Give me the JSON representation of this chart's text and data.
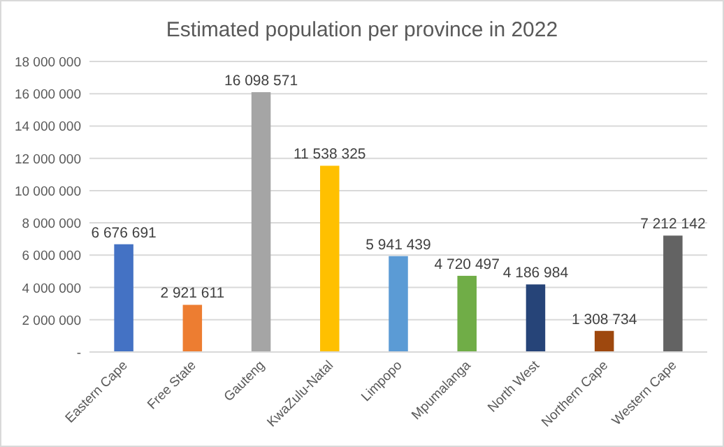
{
  "chart_data": {
    "type": "bar",
    "title": "Estimated population per province in 2022",
    "categories": [
      "Eastern Cape",
      "Free State",
      "Gauteng",
      "KwaZulu-Natal",
      "Limpopo",
      "Mpumalanga",
      "North West",
      "Northern Cape",
      "Western Cape"
    ],
    "values": [
      6676691,
      2921611,
      16098571,
      11538325,
      5941439,
      4720497,
      4186984,
      1308734,
      7212142
    ],
    "colors": [
      "#4472c4",
      "#ed7d31",
      "#a5a5a5",
      "#ffc000",
      "#5b9bd5",
      "#70ad47",
      "#264478",
      "#9e480e",
      "#636363"
    ],
    "value_labels": [
      "6 676 691",
      "2 921 611",
      "16 098 571",
      "11 538 325",
      "5 941 439",
      "4 720 497",
      "4 186 984",
      "1 308 734",
      "7 212 142"
    ],
    "ylim": [
      0,
      18000000
    ],
    "yticks": [
      {
        "value": 0,
        "label": "-"
      },
      {
        "value": 2000000,
        "label": "2 000 000"
      },
      {
        "value": 4000000,
        "label": "4 000 000"
      },
      {
        "value": 6000000,
        "label": "6 000 000"
      },
      {
        "value": 8000000,
        "label": "8 000 000"
      },
      {
        "value": 10000000,
        "label": "10 000 000"
      },
      {
        "value": 12000000,
        "label": "12 000 000"
      },
      {
        "value": 14000000,
        "label": "14 000 000"
      },
      {
        "value": 16000000,
        "label": "16 000 000"
      },
      {
        "value": 18000000,
        "label": "18 000 000"
      }
    ],
    "grid": "y"
  }
}
